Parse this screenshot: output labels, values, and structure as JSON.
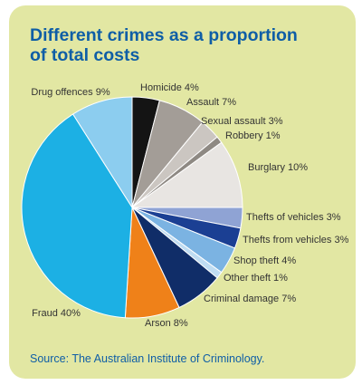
{
  "title_lines": [
    "Different crimes as a proportion",
    "of total costs"
  ],
  "source": "Source: The Australian Institute of Criminology.",
  "chart_data": {
    "type": "pie",
    "start": "12 o'clock",
    "direction": "clockwise",
    "labels": [
      "Homicide",
      "Assault",
      "Sexual assault",
      "Robbery",
      "Burglary",
      "Thefts of vehicles",
      "Thefts from vehicles",
      "Shop theft",
      "Other theft",
      "Criminal damage",
      "Arson",
      "Fraud",
      "Drug offences"
    ],
    "values": [
      4,
      7,
      3,
      1,
      10,
      3,
      3,
      4,
      1,
      7,
      8,
      40,
      9
    ],
    "data_labels": [
      "Homicide 4%",
      "Assault 7%",
      "Sexual assault 3%",
      "Robbery 1%",
      "Burglary 10%",
      "Thefts of vehicles 3%",
      "Thefts from vehicles 3%",
      "Shop theft 4%",
      "Other theft 1%",
      "Criminal damage 7%",
      "Arson 8%",
      "Fraud 40%",
      "Drug offences 9%"
    ],
    "colors": [
      "#141414",
      "#a39d97",
      "#cbc6c1",
      "#8e8983",
      "#e8e5e2",
      "#8fa3d4",
      "#1b3f93",
      "#7bb3e2",
      "#bfdcf2",
      "#102d68",
      "#ef8119",
      "#1cb0e4",
      "#8ccdef"
    ]
  }
}
